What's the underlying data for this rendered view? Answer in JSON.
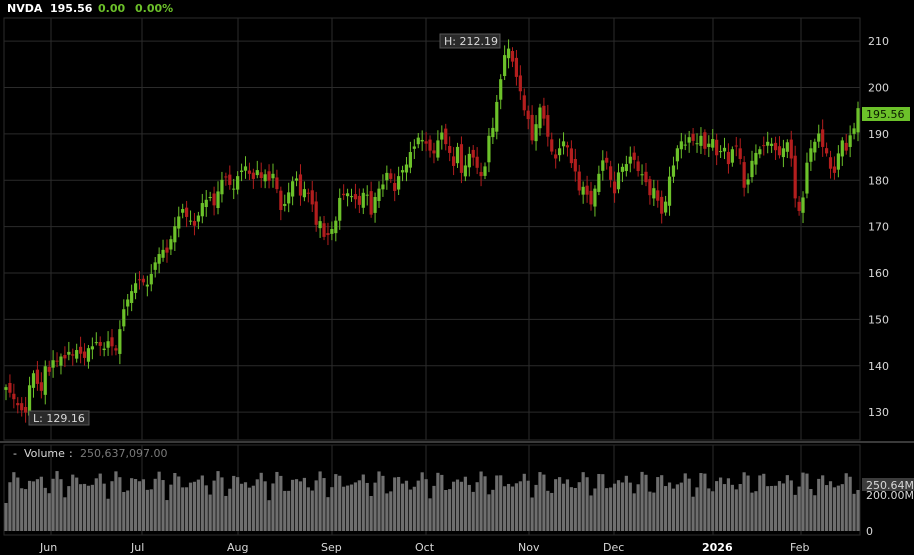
{
  "header": {
    "symbol": "NVDA",
    "last": "195.56",
    "change": "0.00",
    "change_pct": "0.00%"
  },
  "colors": {
    "up": "#6cc12a",
    "down": "#b31e1e",
    "grid": "#2b2b2b",
    "volume": "#6e6e6e",
    "accent": "#6cc12a"
  },
  "chart_data": {
    "type": "candlestick",
    "price_axis": {
      "ticks": [
        130,
        140,
        150,
        160,
        170,
        180,
        190,
        200,
        210
      ],
      "range": [
        124,
        215
      ]
    },
    "x_labels": [
      "Jun",
      "Jul",
      "Aug",
      "Sep",
      "Oct",
      "Nov",
      "Dec",
      "2026",
      "Feb"
    ],
    "high_label": "H: 212.19",
    "low_label": "L: 129.16",
    "last_label": "195.56",
    "volume": {
      "title": "Volume",
      "value": "250,637,097.00",
      "tick_labels": [
        "250.64M",
        "200.00M",
        "0"
      ],
      "range": [
        0,
        280
      ]
    },
    "series": [
      {
        "name": "NVDA",
        "closes": [
          135.4,
          134.2,
          132.8,
          131.5,
          130.4,
          129.9,
          135.8,
          138.4,
          136.1,
          134.6,
          139.9,
          138.7,
          141.2,
          140.9,
          142.0,
          141.6,
          143.0,
          142.2,
          143.4,
          142.6,
          141.7,
          143.8,
          144.2,
          145.1,
          144.3,
          143.7,
          145.3,
          144.2,
          143.3,
          147.9,
          152.2,
          154.3,
          156.1,
          157.8,
          158.6,
          158.0,
          157.5,
          159.8,
          162.3,
          164.1,
          165.0,
          164.4,
          167.3,
          170.1,
          172.2,
          173.8,
          172.1,
          171.3,
          170.2,
          172.4,
          175.1,
          175.8,
          176.4,
          174.6,
          177.6,
          180.1,
          180.8,
          179.0,
          178.2,
          180.9,
          182.1,
          183.0,
          181.4,
          180.3,
          182.2,
          180.5,
          181.3,
          179.9,
          181.4,
          178.1,
          173.6,
          174.9,
          177.4,
          179.8,
          180.4,
          176.7,
          178.1,
          177.3,
          174.8,
          170.4,
          171.2,
          167.8,
          168.2,
          169.5,
          171.3,
          176.2,
          176.8,
          177.2,
          176.6,
          175.9,
          174.7,
          177.3,
          176.9,
          172.6,
          176.4,
          178.2,
          179.1,
          181.6,
          180.3,
          177.7,
          180.9,
          182.2,
          183.4,
          186.1,
          187.3,
          189.2,
          188.7,
          187.9,
          186.4,
          185.8,
          188.6,
          190.3,
          187.8,
          185.9,
          183.1,
          187.2,
          181.6,
          183.2,
          185.7,
          184.9,
          182.7,
          180.9,
          183.0,
          189.6,
          191.3,
          196.9,
          201.8,
          207.0,
          208.4,
          205.6,
          202.3,
          199.2,
          195.1,
          193.2,
          188.6,
          192.1,
          195.7,
          193.3,
          189.4,
          186.2,
          184.7,
          186.9,
          188.4,
          187.1,
          183.7,
          181.9,
          177.8,
          178.6,
          176.9,
          174.8,
          178.2,
          181.4,
          184.3,
          183.8,
          180.1,
          177.2,
          181.7,
          182.9,
          183.5,
          185.1,
          184.4,
          182.0,
          181.3,
          179.6,
          176.8,
          178.3,
          175.6,
          172.8,
          175.4,
          180.8,
          183.2,
          186.9,
          188.4,
          187.7,
          189.3,
          188.5,
          188.0,
          189.6,
          186.8,
          187.9,
          188.9,
          185.4,
          186.3,
          187.0,
          183.5,
          186.7,
          187.4,
          184.6,
          178.4,
          180.2,
          184.2,
          185.9,
          186.7,
          187.4,
          188.3,
          187.9,
          186.5,
          185.4,
          186.9,
          188.2,
          184.7,
          176.1,
          173.4,
          176.3,
          183.8,
          186.9,
          188.3,
          190.1,
          187.2,
          185.8,
          182.5,
          181.6,
          185.8,
          188.6,
          186.4,
          189.7,
          191.2,
          195.56
        ]
      }
    ]
  }
}
